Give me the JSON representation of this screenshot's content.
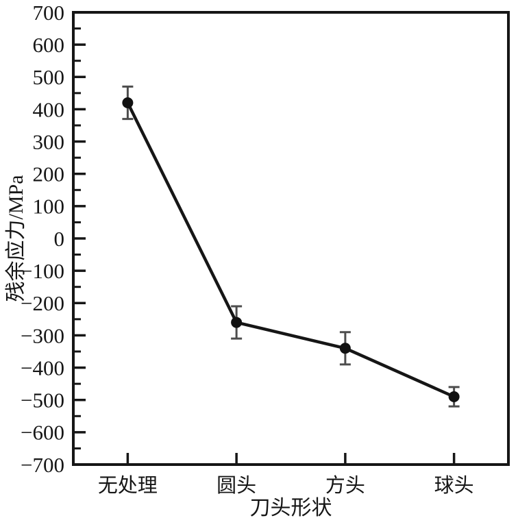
{
  "figure": {
    "background": "#ffffff"
  },
  "chart_data": {
    "type": "line",
    "title": "",
    "categories": [
      "无处理",
      "圆头",
      "方头",
      "球头"
    ],
    "series": [
      {
        "name": "残余应力",
        "values": [
          420,
          -260,
          -340,
          -490
        ],
        "errors": [
          50,
          50,
          50,
          30
        ]
      }
    ],
    "xlabel": "刀头形状",
    "ylabel": "残余应力/MPa",
    "ylim": [
      -700,
      700
    ],
    "ytick_step": 100,
    "yminor_step": 50,
    "grid": false,
    "legend": false,
    "marker": "circle",
    "colors": {
      "line": "#161616",
      "marker": "#111111",
      "error_bar": "#4d4d4d",
      "axis": "#161616",
      "text": "#161616"
    }
  }
}
